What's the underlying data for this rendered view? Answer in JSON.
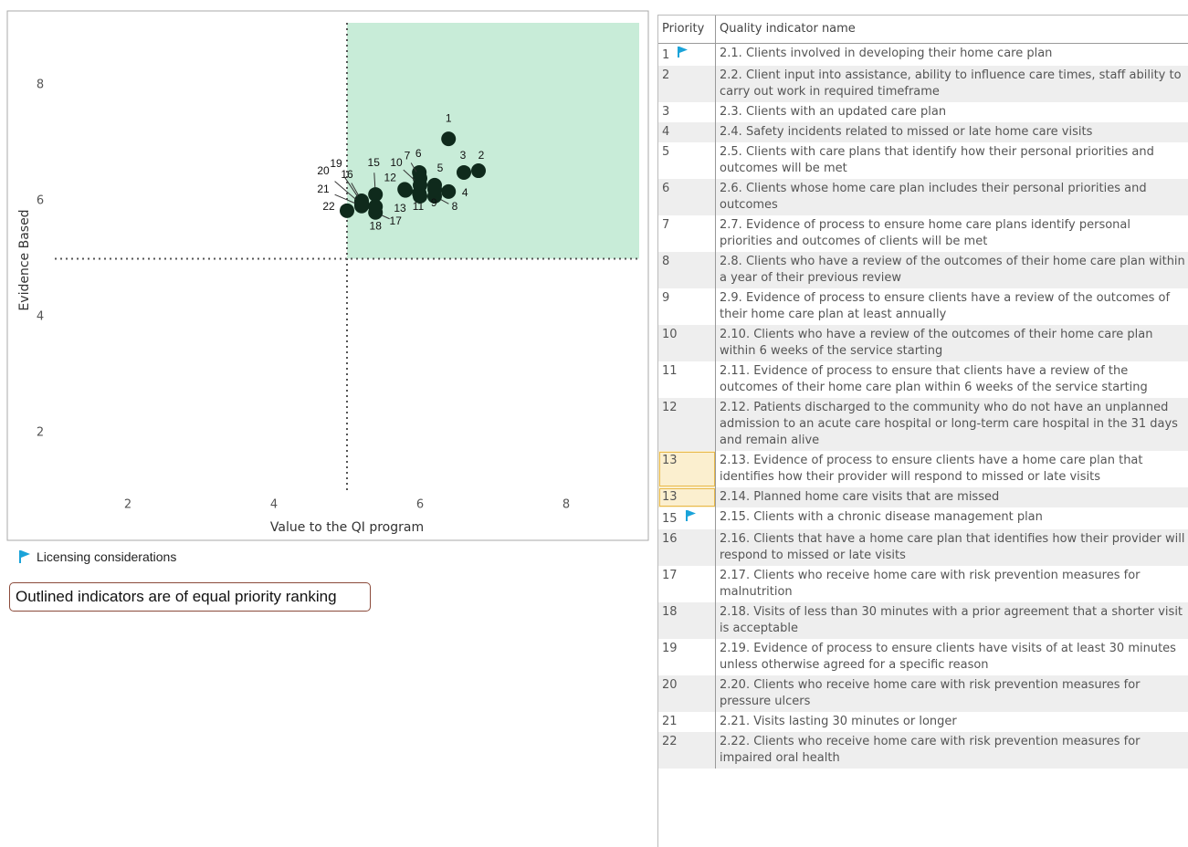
{
  "chart_data": {
    "type": "scatter",
    "x_label": "Value to the QI program",
    "y_label": "Evidence Based",
    "x": [
      6.39,
      6.8,
      6.6,
      6.39,
      6.2,
      5.99,
      6.0,
      6.2,
      5.99,
      6.0,
      6.0,
      5.79,
      5.8,
      6.2,
      5.39,
      5.2,
      5.39,
      5.39,
      5.2,
      5.2,
      5.2,
      5.0
    ],
    "values": [
      7.07,
      6.52,
      6.49,
      6.16,
      6.27,
      6.49,
      6.39,
      6.08,
      6.13,
      6.27,
      6.08,
      6.2,
      6.18,
      6.2,
      6.11,
      6.0,
      5.8,
      5.9,
      5.97,
      5.94,
      5.91,
      5.83
    ],
    "point_labels": [
      "1",
      "2",
      "3",
      "4",
      "5",
      "6",
      "7",
      "8",
      "9",
      "10",
      "11",
      "12",
      "13",
      null,
      "15",
      "16",
      "17",
      "18",
      "19",
      "20",
      "21",
      "22"
    ],
    "color": "#0f2a1c",
    "region_color": "#c8ecd8",
    "xlim": [
      0.375,
      9.125
    ],
    "xticks": [
      2,
      4,
      6,
      8
    ],
    "ylim": [
      0.96,
      9.23
    ],
    "yticks": [
      2,
      4,
      6,
      8
    ],
    "reference_lines": {
      "x": 5,
      "y": 5
    }
  },
  "legend": {
    "label": "Licensing considerations",
    "color": "#1aa3d9"
  },
  "note": "Outlined indicators are of equal priority ranking",
  "table": {
    "columns": [
      "Priority",
      "Quality indicator name"
    ],
    "rows": [
      {
        "priority": 1,
        "flag": true,
        "name": "2.1. Clients involved in developing their home care plan"
      },
      {
        "priority": 2,
        "name": "2.2. Client input into assistance, ability to influence care times, staff ability to carry out work in required timeframe"
      },
      {
        "priority": 3,
        "name": "2.3. Clients with an updated care plan"
      },
      {
        "priority": 4,
        "name": "2.4. Safety incidents related to missed or late home care visits"
      },
      {
        "priority": 5,
        "name": "2.5. Clients with care plans that identify how their personal priorities and outcomes will be met"
      },
      {
        "priority": 6,
        "name": "2.6. Clients whose home care plan includes their personal priorities and outcomes"
      },
      {
        "priority": 7,
        "name": "2.7. Evidence of process to ensure home care plans identify personal priorities and outcomes of clients will be met"
      },
      {
        "priority": 8,
        "name": "2.8. Clients who have a review of the outcomes of their home care plan within a year of their previous review"
      },
      {
        "priority": 9,
        "name": "2.9. Evidence of process to ensure clients have a review of the outcomes of their home care plan at least annually"
      },
      {
        "priority": 10,
        "name": "2.10. Clients who have a review of the outcomes of their home care plan within 6 weeks of the service starting"
      },
      {
        "priority": 11,
        "name": "2.11. Evidence of process to ensure that clients have a review of the outcomes of their home care plan within 6 weeks of the service starting"
      },
      {
        "priority": 12,
        "name": "2.12. Patients discharged to the community who do not have an unplanned admission to an acute care hospital or long-term care hospital in the 31 days and remain alive"
      },
      {
        "priority": 13,
        "outlined": true,
        "name": "2.13. Evidence of process to ensure clients have a home care plan that identifies how their provider will respond to missed or late visits"
      },
      {
        "priority": 13,
        "outlined": true,
        "name": "2.14. Planned home care visits that are missed"
      },
      {
        "priority": 15,
        "flag": true,
        "name": "2.15. Clients with a chronic disease management plan"
      },
      {
        "priority": 16,
        "name": "2.16. Clients that have a home care plan that identifies how their provider will respond to missed or late visits"
      },
      {
        "priority": 17,
        "name": "2.17. Clients who receive home care with risk prevention measures for malnutrition"
      },
      {
        "priority": 18,
        "name": "2.18. Visits of less than 30 minutes with a prior agreement that a shorter visit is acceptable"
      },
      {
        "priority": 19,
        "name": "2.19. Evidence of process to ensure clients have visits of at least 30 minutes unless otherwise agreed for a specific reason"
      },
      {
        "priority": 20,
        "name": "2.20. Clients who receive home care with risk prevention measures for pressure ulcers"
      },
      {
        "priority": 21,
        "name": "2.21. Visits lasting 30 minutes or longer"
      },
      {
        "priority": 22,
        "name": "2.22. Clients who receive home care with risk prevention measures for impaired oral health"
      }
    ]
  }
}
